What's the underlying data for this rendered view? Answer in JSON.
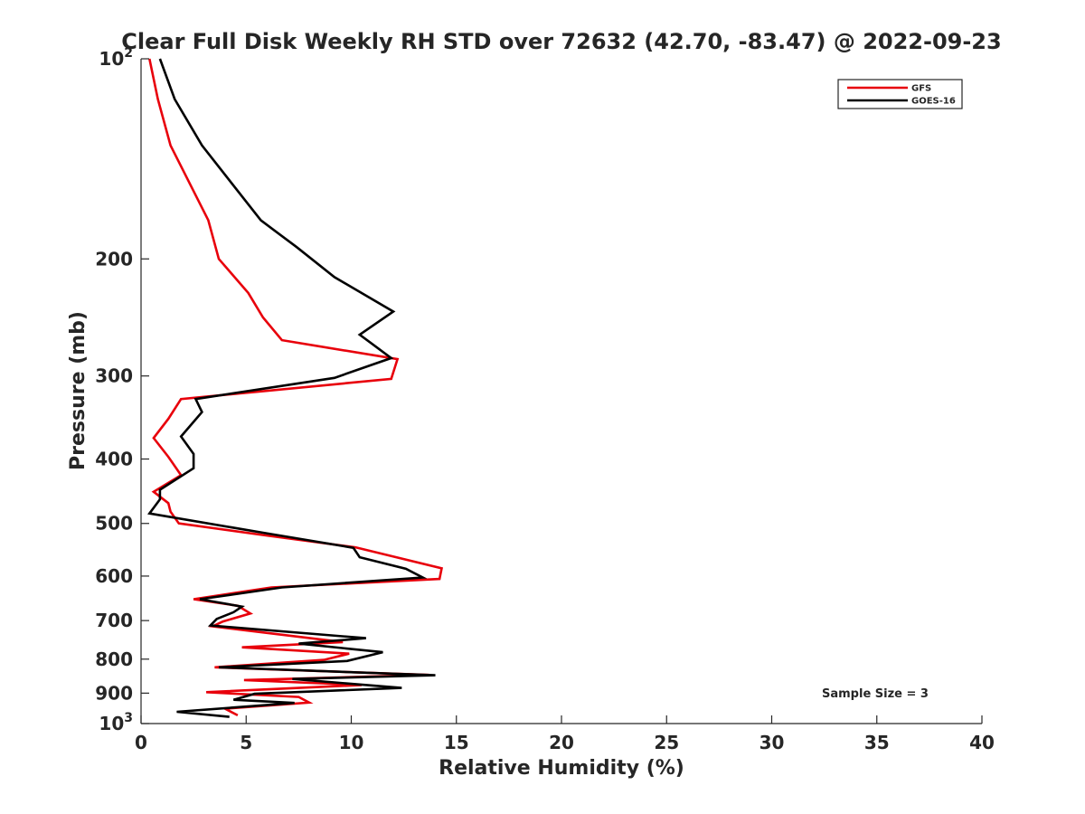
{
  "chart_data": {
    "type": "line",
    "title": "Clear Full Disk Weekly RH STD over 72632 (42.70, -83.47) @ 2022-09-23",
    "xlabel": "Relative Humidity (%)",
    "ylabel": "Pressure (mb)",
    "xlim": [
      0,
      40
    ],
    "ylim": [
      100,
      1000
    ],
    "y_scale": "log",
    "y_reversed": true,
    "grid": false,
    "legend_position": "top-right",
    "x_ticks": [
      "0",
      "5",
      "10",
      "15",
      "20",
      "25",
      "30",
      "35",
      "40"
    ],
    "x_tick_values": [
      0,
      5,
      10,
      15,
      20,
      25,
      30,
      35,
      40
    ],
    "y_ticks": [
      {
        "value": 100,
        "base": "10",
        "exp": "2"
      },
      {
        "value": 200,
        "label": "200"
      },
      {
        "value": 300,
        "label": "300"
      },
      {
        "value": 400,
        "label": "400"
      },
      {
        "value": 500,
        "label": "500"
      },
      {
        "value": 600,
        "label": "600"
      },
      {
        "value": 700,
        "label": "700"
      },
      {
        "value": 800,
        "label": "800"
      },
      {
        "value": 900,
        "label": "900"
      },
      {
        "value": 1000,
        "base": "10",
        "exp": "3"
      }
    ],
    "annotation": "Sample Size = 3",
    "series": [
      {
        "name": "GFS",
        "color": "#e8000b",
        "points": [
          {
            "rh": 0.4,
            "p": 100
          },
          {
            "rh": 0.8,
            "p": 115
          },
          {
            "rh": 1.4,
            "p": 135
          },
          {
            "rh": 3.2,
            "p": 175
          },
          {
            "rh": 3.7,
            "p": 200
          },
          {
            "rh": 5.1,
            "p": 225
          },
          {
            "rh": 5.8,
            "p": 245
          },
          {
            "rh": 6.7,
            "p": 265
          },
          {
            "rh": 12.2,
            "p": 283
          },
          {
            "rh": 11.9,
            "p": 303
          },
          {
            "rh": 1.9,
            "p": 325
          },
          {
            "rh": 1.3,
            "p": 348
          },
          {
            "rh": 0.6,
            "p": 372
          },
          {
            "rh": 1.3,
            "p": 397
          },
          {
            "rh": 1.9,
            "p": 423
          },
          {
            "rh": 0.6,
            "p": 448
          },
          {
            "rh": 1.3,
            "p": 466
          },
          {
            "rh": 1.4,
            "p": 480
          },
          {
            "rh": 1.8,
            "p": 500
          },
          {
            "rh": 6.1,
            "p": 522
          },
          {
            "rh": 10.2,
            "p": 543
          },
          {
            "rh": 14.3,
            "p": 584
          },
          {
            "rh": 14.2,
            "p": 606
          },
          {
            "rh": 6.2,
            "p": 624
          },
          {
            "rh": 2.5,
            "p": 650
          },
          {
            "rh": 4.6,
            "p": 665
          },
          {
            "rh": 5.2,
            "p": 683
          },
          {
            "rh": 3.9,
            "p": 702
          },
          {
            "rh": 3.4,
            "p": 714
          },
          {
            "rh": 9.6,
            "p": 754
          },
          {
            "rh": 4.8,
            "p": 768
          },
          {
            "rh": 9.9,
            "p": 785
          },
          {
            "rh": 8.7,
            "p": 802
          },
          {
            "rh": 3.5,
            "p": 823
          },
          {
            "rh": 13.7,
            "p": 845
          },
          {
            "rh": 4.9,
            "p": 860
          },
          {
            "rh": 10.5,
            "p": 875
          },
          {
            "rh": 3.1,
            "p": 897
          },
          {
            "rh": 7.5,
            "p": 912
          },
          {
            "rh": 8.0,
            "p": 930
          },
          {
            "rh": 4.0,
            "p": 950
          },
          {
            "rh": 4.6,
            "p": 972
          }
        ]
      },
      {
        "name": "GOES-16",
        "color": "#000000",
        "points": [
          {
            "rh": 0.9,
            "p": 100
          },
          {
            "rh": 1.6,
            "p": 115
          },
          {
            "rh": 2.9,
            "p": 135
          },
          {
            "rh": 5.7,
            "p": 175
          },
          {
            "rh": 7.4,
            "p": 192
          },
          {
            "rh": 9.2,
            "p": 213
          },
          {
            "rh": 12.0,
            "p": 240
          },
          {
            "rh": 10.4,
            "p": 260
          },
          {
            "rh": 11.9,
            "p": 282
          },
          {
            "rh": 9.2,
            "p": 302
          },
          {
            "rh": 2.6,
            "p": 325
          },
          {
            "rh": 2.9,
            "p": 340
          },
          {
            "rh": 1.9,
            "p": 370
          },
          {
            "rh": 2.5,
            "p": 393
          },
          {
            "rh": 2.5,
            "p": 413
          },
          {
            "rh": 0.9,
            "p": 445
          },
          {
            "rh": 0.9,
            "p": 460
          },
          {
            "rh": 0.4,
            "p": 483
          },
          {
            "rh": 5.9,
            "p": 517
          },
          {
            "rh": 10.1,
            "p": 544
          },
          {
            "rh": 10.4,
            "p": 562
          },
          {
            "rh": 12.6,
            "p": 585
          },
          {
            "rh": 13.4,
            "p": 603
          },
          {
            "rh": 6.7,
            "p": 624
          },
          {
            "rh": 2.8,
            "p": 650
          },
          {
            "rh": 4.8,
            "p": 667
          },
          {
            "rh": 4.4,
            "p": 680
          },
          {
            "rh": 3.6,
            "p": 696
          },
          {
            "rh": 3.3,
            "p": 712
          },
          {
            "rh": 10.7,
            "p": 744
          },
          {
            "rh": 7.5,
            "p": 758
          },
          {
            "rh": 11.5,
            "p": 781
          },
          {
            "rh": 9.8,
            "p": 805
          },
          {
            "rh": 3.7,
            "p": 823
          },
          {
            "rh": 14.0,
            "p": 846
          },
          {
            "rh": 7.2,
            "p": 857
          },
          {
            "rh": 12.4,
            "p": 884
          },
          {
            "rh": 5.4,
            "p": 902
          },
          {
            "rh": 4.4,
            "p": 921
          },
          {
            "rh": 7.3,
            "p": 931
          },
          {
            "rh": 1.7,
            "p": 960
          },
          {
            "rh": 4.2,
            "p": 977
          }
        ]
      }
    ]
  }
}
